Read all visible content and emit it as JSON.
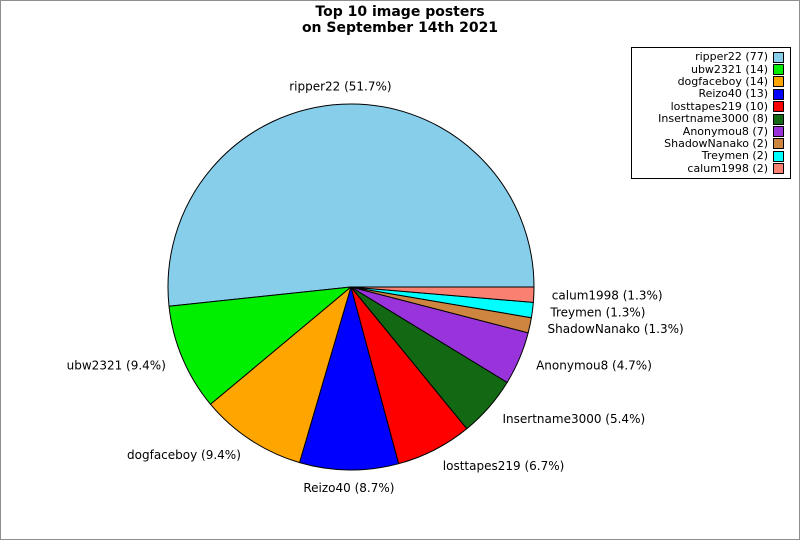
{
  "chart_data": {
    "type": "pie",
    "title_lines": [
      "Top 10 image posters",
      "on September 14th 2021"
    ],
    "start_angle_deg": 0,
    "direction": "counterclockwise",
    "legend_position": "upper-right",
    "edge_color": "#000000",
    "background_color": "#ffffff",
    "slices": [
      {
        "name": "ripper22",
        "count": 77,
        "percent": 51.7,
        "color": "#87CEEB",
        "slice_label": "ripper22 (51.7%)",
        "legend_label": "ripper22 (77)"
      },
      {
        "name": "ubw2321",
        "count": 14,
        "percent": 9.4,
        "color": "#00EE00",
        "slice_label": "ubw2321 (9.4%)",
        "legend_label": "ubw2321 (14)"
      },
      {
        "name": "dogfaceboy",
        "count": 14,
        "percent": 9.4,
        "color": "#FFA500",
        "slice_label": "dogfaceboy (9.4%)",
        "legend_label": "dogfaceboy (14)"
      },
      {
        "name": "Reizo40",
        "count": 13,
        "percent": 8.7,
        "color": "#0000FF",
        "slice_label": "Reizo40 (8.7%)",
        "legend_label": "Reizo40 (13)"
      },
      {
        "name": "losttapes219",
        "count": 10,
        "percent": 6.7,
        "color": "#FF0000",
        "slice_label": "losttapes219 (6.7%)",
        "legend_label": "losttapes219 (10)"
      },
      {
        "name": "Insertname3000",
        "count": 8,
        "percent": 5.4,
        "color": "#136913",
        "slice_label": "Insertname3000 (5.4%)",
        "legend_label": "Insertname3000 (8)"
      },
      {
        "name": "Anonymou8",
        "count": 7,
        "percent": 4.7,
        "color": "#9933DB",
        "slice_label": "Anonymou8 (4.7%)",
        "legend_label": "Anonymou8 (7)"
      },
      {
        "name": "ShadowNanako",
        "count": 2,
        "percent": 1.3,
        "color": "#CD853F",
        "slice_label": "ShadowNanako (1.3%)",
        "legend_label": "ShadowNanako (2)"
      },
      {
        "name": "Treymen",
        "count": 2,
        "percent": 1.3,
        "color": "#00FFFF",
        "slice_label": "Treymen (1.3%)",
        "legend_label": "Treymen (2)"
      },
      {
        "name": "calum1998",
        "count": 2,
        "percent": 1.3,
        "color": "#FA8072",
        "slice_label": "calum1998 (1.3%)",
        "legend_label": "calum1998 (2)"
      }
    ]
  }
}
